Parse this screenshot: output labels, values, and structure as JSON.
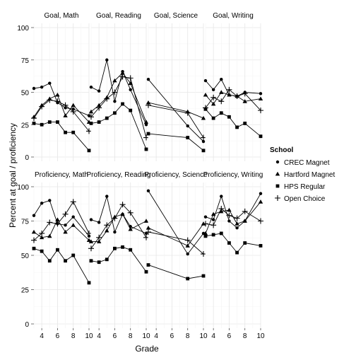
{
  "chart_data": {
    "type": "line",
    "faceted": true,
    "xlabel": "Grade",
    "ylabel": "Percent at goal / proficiency",
    "legend": {
      "title": "School",
      "position": "right"
    },
    "grid": true,
    "xlim": [
      3,
      10
    ],
    "ylim": [
      0,
      100
    ],
    "x_ticks": [
      4,
      6,
      8,
      10
    ],
    "y_ticks": [
      0,
      25,
      50,
      75,
      100
    ],
    "series": [
      {
        "name": "CREC Magnet",
        "shape": "circle"
      },
      {
        "name": "Hartford Magnet",
        "shape": "triangle"
      },
      {
        "name": "HPS Regular",
        "shape": "square"
      },
      {
        "name": "Open Choice",
        "shape": "plus"
      }
    ],
    "panels": [
      {
        "title": "Goal, Math",
        "data": {
          "CREC Magnet": [
            [
              3,
              53
            ],
            [
              4,
              54
            ],
            [
              5,
              57
            ],
            [
              6,
              42
            ],
            [
              7,
              38
            ],
            [
              8,
              37
            ],
            [
              10,
              32
            ]
          ],
          "Hartford Magnet": [
            [
              3,
              31
            ],
            [
              4,
              40
            ],
            [
              5,
              45
            ],
            [
              6,
              48
            ],
            [
              7,
              32
            ],
            [
              8,
              40
            ],
            [
              10,
              27
            ]
          ],
          "HPS Regular": [
            [
              3,
              26
            ],
            [
              4,
              25
            ],
            [
              5,
              27
            ],
            [
              6,
              27
            ],
            [
              7,
              19
            ],
            [
              8,
              19
            ],
            [
              10,
              5
            ]
          ],
          "Open Choice": [
            [
              3,
              30
            ],
            [
              4,
              39
            ],
            [
              5,
              44
            ],
            [
              6,
              43
            ],
            [
              7,
              40
            ],
            [
              8,
              35
            ],
            [
              10,
              20
            ]
          ]
        }
      },
      {
        "title": "Goal, Reading",
        "data": {
          "CREC Magnet": [
            [
              3,
              54
            ],
            [
              4,
              51
            ],
            [
              5,
              75
            ],
            [
              6,
              43
            ],
            [
              7,
              66
            ],
            [
              8,
              52
            ],
            [
              10,
              25
            ]
          ],
          "Hartford Magnet": [
            [
              3,
              35
            ],
            [
              4,
              40
            ],
            [
              5,
              46
            ],
            [
              6,
              59
            ],
            [
              7,
              65
            ],
            [
              8,
              57
            ],
            [
              10,
              27
            ]
          ],
          "HPS Regular": [
            [
              3,
              26
            ],
            [
              4,
              27
            ],
            [
              5,
              30
            ],
            [
              6,
              34
            ],
            [
              7,
              41
            ],
            [
              8,
              36
            ],
            [
              10,
              6
            ]
          ],
          "Open Choice": [
            [
              3,
              31
            ],
            [
              4,
              38
            ],
            [
              5,
              45
            ],
            [
              6,
              50
            ],
            [
              7,
              62
            ],
            [
              8,
              61
            ],
            [
              10,
              15
            ]
          ]
        }
      },
      {
        "title": "Goal, Science",
        "data": {
          "CREC Magnet": [
            [
              3,
              60
            ],
            [
              8,
              24
            ],
            [
              10,
              12
            ]
          ],
          "Hartford Magnet": [
            [
              3,
              42
            ],
            [
              8,
              35
            ],
            [
              10,
              30
            ]
          ],
          "HPS Regular": [
            [
              3,
              18
            ],
            [
              8,
              15
            ],
            [
              10,
              5
            ]
          ],
          "Open Choice": [
            [
              3,
              40
            ],
            [
              8,
              34
            ],
            [
              10,
              15
            ]
          ]
        }
      },
      {
        "title": "Goal, Writing",
        "data": {
          "CREC Magnet": [
            [
              3,
              59
            ],
            [
              4,
              52
            ],
            [
              5,
              60
            ],
            [
              6,
              48
            ],
            [
              7,
              47
            ],
            [
              8,
              50
            ],
            [
              10,
              49
            ]
          ],
          "Hartford Magnet": [
            [
              3,
              48
            ],
            [
              4,
              41
            ],
            [
              5,
              50
            ],
            [
              6,
              48
            ],
            [
              7,
              47
            ],
            [
              8,
              43
            ],
            [
              10,
              45
            ]
          ],
          "HPS Regular": [
            [
              3,
              37
            ],
            [
              4,
              30
            ],
            [
              5,
              34
            ],
            [
              6,
              31
            ],
            [
              7,
              23
            ],
            [
              8,
              26
            ],
            [
              10,
              16
            ]
          ],
          "Open Choice": [
            [
              3,
              38
            ],
            [
              4,
              46
            ],
            [
              5,
              43
            ],
            [
              6,
              52
            ],
            [
              7,
              47
            ],
            [
              8,
              49
            ],
            [
              10,
              36
            ]
          ]
        }
      },
      {
        "title": "Proficiency, Math",
        "data": {
          "CREC Magnet": [
            [
              3,
              79
            ],
            [
              4,
              88
            ],
            [
              5,
              90
            ],
            [
              6,
              73
            ],
            [
              7,
              72
            ],
            [
              8,
              78
            ],
            [
              10,
              64
            ]
          ],
          "Hartford Magnet": [
            [
              3,
              67
            ],
            [
              4,
              63
            ],
            [
              5,
              64
            ],
            [
              6,
              76
            ],
            [
              7,
              67
            ],
            [
              8,
              72
            ],
            [
              10,
              61
            ]
          ],
          "HPS Regular": [
            [
              3,
              55
            ],
            [
              4,
              53
            ],
            [
              5,
              46
            ],
            [
              6,
              54
            ],
            [
              7,
              46
            ],
            [
              8,
              50
            ],
            [
              10,
              30
            ]
          ],
          "Open Choice": [
            [
              3,
              61
            ],
            [
              4,
              66
            ],
            [
              5,
              74
            ],
            [
              6,
              73
            ],
            [
              7,
              80
            ],
            [
              8,
              89
            ],
            [
              10,
              66
            ]
          ]
        }
      },
      {
        "title": "Proficiency, Reading",
        "data": {
          "CREC Magnet": [
            [
              3,
              76
            ],
            [
              4,
              74
            ],
            [
              5,
              93
            ],
            [
              6,
              67
            ],
            [
              7,
              80
            ],
            [
              8,
              71
            ],
            [
              10,
              66
            ]
          ],
          "Hartford Magnet": [
            [
              3,
              60
            ],
            [
              4,
              60
            ],
            [
              5,
              68
            ],
            [
              6,
              78
            ],
            [
              7,
              80
            ],
            [
              8,
              69
            ],
            [
              10,
              75
            ]
          ],
          "HPS Regular": [
            [
              3,
              46
            ],
            [
              4,
              45
            ],
            [
              5,
              47
            ],
            [
              6,
              55
            ],
            [
              7,
              56
            ],
            [
              8,
              54
            ],
            [
              10,
              38
            ]
          ],
          "Open Choice": [
            [
              3,
              55
            ],
            [
              4,
              63
            ],
            [
              5,
              72
            ],
            [
              6,
              77
            ],
            [
              7,
              87
            ],
            [
              8,
              81
            ],
            [
              10,
              63
            ]
          ]
        }
      },
      {
        "title": "Proficiency, Science",
        "data": {
          "CREC Magnet": [
            [
              3,
              97
            ],
            [
              8,
              51
            ],
            [
              10,
              66
            ]
          ],
          "Hartford Magnet": [
            [
              3,
              70
            ],
            [
              8,
              57
            ],
            [
              10,
              73
            ]
          ],
          "HPS Regular": [
            [
              3,
              43
            ],
            [
              8,
              33
            ],
            [
              10,
              35
            ]
          ],
          "Open Choice": [
            [
              3,
              67
            ],
            [
              8,
              61
            ],
            [
              10,
              51
            ]
          ]
        }
      },
      {
        "title": "Proficiency, Writing",
        "data": {
          "CREC Magnet": [
            [
              3,
              78
            ],
            [
              4,
              76
            ],
            [
              5,
              93
            ],
            [
              6,
              75
            ],
            [
              7,
              70
            ],
            [
              8,
              75
            ],
            [
              10,
              95
            ]
          ],
          "Hartford Magnet": [
            [
              3,
              66
            ],
            [
              4,
              80
            ],
            [
              5,
              82
            ],
            [
              6,
              83
            ],
            [
              7,
              73
            ],
            [
              8,
              75
            ],
            [
              10,
              89
            ]
          ],
          "HPS Regular": [
            [
              3,
              64
            ],
            [
              4,
              65
            ],
            [
              5,
              66
            ],
            [
              6,
              59
            ],
            [
              7,
              52
            ],
            [
              8,
              59
            ],
            [
              10,
              57
            ]
          ],
          "Open Choice": [
            [
              3,
              73
            ],
            [
              4,
              72
            ],
            [
              5,
              84
            ],
            [
              6,
              79
            ],
            [
              7,
              77
            ],
            [
              8,
              82
            ],
            [
              10,
              75
            ]
          ]
        }
      }
    ]
  }
}
